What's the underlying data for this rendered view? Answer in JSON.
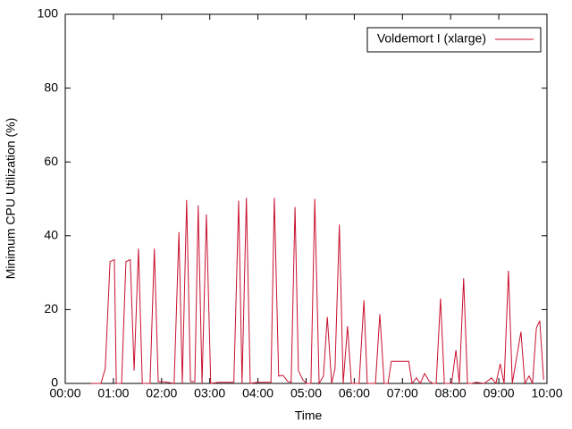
{
  "chart_data": {
    "type": "line",
    "xlabel": "Time",
    "ylabel": "Minimum CPU Utilization (%)",
    "xlim": [
      0,
      10
    ],
    "ylim": [
      0,
      100
    ],
    "xticks": [
      {
        "value": 0,
        "label": "00:00"
      },
      {
        "value": 1,
        "label": "01:00"
      },
      {
        "value": 2,
        "label": "02:00"
      },
      {
        "value": 3,
        "label": "03:00"
      },
      {
        "value": 4,
        "label": "04:00"
      },
      {
        "value": 5,
        "label": "05:00"
      },
      {
        "value": 6,
        "label": "06:00"
      },
      {
        "value": 7,
        "label": "07:00"
      },
      {
        "value": 8,
        "label": "08:00"
      },
      {
        "value": 9,
        "label": "09:00"
      },
      {
        "value": 10,
        "label": "10:00"
      }
    ],
    "yticks": [
      0,
      20,
      40,
      60,
      80,
      100
    ],
    "legend": "top-right",
    "series": [
      {
        "name": "Voldemort I (xlarge)",
        "color": "#c8102e",
        "x": [
          0.54,
          0.74,
          0.83,
          0.93,
          1.02,
          1.06,
          1.17,
          1.26,
          1.35,
          1.43,
          1.52,
          1.6,
          1.76,
          1.85,
          1.93,
          2.02,
          2.12,
          2.26,
          2.36,
          2.43,
          2.52,
          2.6,
          2.69,
          2.76,
          2.84,
          2.93,
          3.02,
          3.19,
          3.5,
          3.6,
          3.67,
          3.76,
          3.84,
          3.99,
          4.27,
          4.34,
          4.43,
          4.52,
          4.62,
          4.69,
          4.77,
          4.84,
          4.93,
          5.01,
          5.1,
          5.18,
          5.27,
          5.36,
          5.44,
          5.53,
          5.6,
          5.69,
          5.77,
          5.86,
          5.94,
          6.1,
          6.2,
          6.27,
          6.44,
          6.53,
          6.62,
          6.7,
          6.77,
          7.13,
          7.2,
          7.29,
          7.37,
          7.46,
          7.55,
          7.63,
          7.7,
          7.79,
          7.87,
          8.02,
          8.11,
          8.18,
          8.27,
          8.35,
          8.44,
          8.53,
          8.7,
          8.85,
          8.94,
          9.03,
          9.11,
          9.2,
          9.28,
          9.37,
          9.46,
          9.54,
          9.63,
          9.7,
          9.78,
          9.85,
          9.93
        ],
        "values": [
          0,
          0,
          4,
          33,
          33.5,
          0,
          0,
          33,
          33.5,
          3.5,
          36.5,
          0,
          0,
          36.5,
          0.5,
          0.5,
          0.3,
          0,
          41,
          0,
          49.7,
          0.5,
          0.5,
          48.2,
          0,
          45.8,
          0,
          0.3,
          0.3,
          49.5,
          0,
          50.3,
          0,
          0.3,
          0.3,
          50.3,
          2,
          2.2,
          0.5,
          0.3,
          47.8,
          3.5,
          1,
          0,
          0,
          50,
          0,
          2,
          18,
          0,
          4,
          43,
          0,
          15.5,
          0,
          0,
          22.5,
          0,
          0,
          18.8,
          0,
          0,
          6,
          6,
          0,
          1.5,
          0,
          2.7,
          0.7,
          0,
          0,
          23,
          0,
          0,
          9,
          0,
          28.5,
          0,
          0,
          0.3,
          0,
          1.5,
          0,
          5.3,
          0,
          30.5,
          0,
          7,
          14,
          0,
          2,
          0,
          15,
          17,
          1
        ]
      }
    ]
  }
}
